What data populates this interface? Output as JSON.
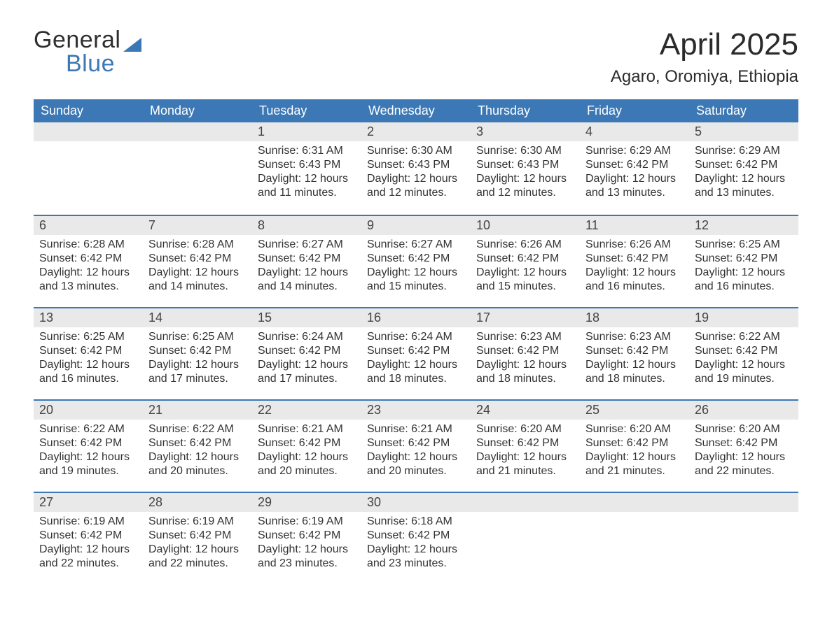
{
  "logo": {
    "word1": "General",
    "word2": "Blue"
  },
  "title": "April 2025",
  "location": "Agaro, Oromiya, Ethiopia",
  "labels": {
    "sunrise": "Sunrise:",
    "sunset": "Sunset:",
    "daylight": "Daylight:"
  },
  "weekdays": [
    "Sunday",
    "Monday",
    "Tuesday",
    "Wednesday",
    "Thursday",
    "Friday",
    "Saturday"
  ],
  "colors": {
    "brand_blue": "#3b78b5",
    "header_bg": "#3b78b5",
    "header_text": "#ffffff",
    "daynum_bg": "#e9e9e9",
    "text": "#333333",
    "rule": "#3b78b5",
    "background": "#ffffff"
  },
  "typography": {
    "title_fontsize_pt": 33,
    "location_fontsize_pt": 18,
    "weekday_fontsize_pt": 14,
    "body_fontsize_pt": 12,
    "font_family": "Segoe UI, Arial, sans-serif"
  },
  "weeks": [
    [
      {
        "n": null
      },
      {
        "n": null
      },
      {
        "n": 1,
        "sunrise": "6:31 AM",
        "sunset": "6:43 PM",
        "dl1": "12 hours",
        "dl2": "and 11 minutes."
      },
      {
        "n": 2,
        "sunrise": "6:30 AM",
        "sunset": "6:43 PM",
        "dl1": "12 hours",
        "dl2": "and 12 minutes."
      },
      {
        "n": 3,
        "sunrise": "6:30 AM",
        "sunset": "6:43 PM",
        "dl1": "12 hours",
        "dl2": "and 12 minutes."
      },
      {
        "n": 4,
        "sunrise": "6:29 AM",
        "sunset": "6:42 PM",
        "dl1": "12 hours",
        "dl2": "and 13 minutes."
      },
      {
        "n": 5,
        "sunrise": "6:29 AM",
        "sunset": "6:42 PM",
        "dl1": "12 hours",
        "dl2": "and 13 minutes."
      }
    ],
    [
      {
        "n": 6,
        "sunrise": "6:28 AM",
        "sunset": "6:42 PM",
        "dl1": "12 hours",
        "dl2": "and 13 minutes."
      },
      {
        "n": 7,
        "sunrise": "6:28 AM",
        "sunset": "6:42 PM",
        "dl1": "12 hours",
        "dl2": "and 14 minutes."
      },
      {
        "n": 8,
        "sunrise": "6:27 AM",
        "sunset": "6:42 PM",
        "dl1": "12 hours",
        "dl2": "and 14 minutes."
      },
      {
        "n": 9,
        "sunrise": "6:27 AM",
        "sunset": "6:42 PM",
        "dl1": "12 hours",
        "dl2": "and 15 minutes."
      },
      {
        "n": 10,
        "sunrise": "6:26 AM",
        "sunset": "6:42 PM",
        "dl1": "12 hours",
        "dl2": "and 15 minutes."
      },
      {
        "n": 11,
        "sunrise": "6:26 AM",
        "sunset": "6:42 PM",
        "dl1": "12 hours",
        "dl2": "and 16 minutes."
      },
      {
        "n": 12,
        "sunrise": "6:25 AM",
        "sunset": "6:42 PM",
        "dl1": "12 hours",
        "dl2": "and 16 minutes."
      }
    ],
    [
      {
        "n": 13,
        "sunrise": "6:25 AM",
        "sunset": "6:42 PM",
        "dl1": "12 hours",
        "dl2": "and 16 minutes."
      },
      {
        "n": 14,
        "sunrise": "6:25 AM",
        "sunset": "6:42 PM",
        "dl1": "12 hours",
        "dl2": "and 17 minutes."
      },
      {
        "n": 15,
        "sunrise": "6:24 AM",
        "sunset": "6:42 PM",
        "dl1": "12 hours",
        "dl2": "and 17 minutes."
      },
      {
        "n": 16,
        "sunrise": "6:24 AM",
        "sunset": "6:42 PM",
        "dl1": "12 hours",
        "dl2": "and 18 minutes."
      },
      {
        "n": 17,
        "sunrise": "6:23 AM",
        "sunset": "6:42 PM",
        "dl1": "12 hours",
        "dl2": "and 18 minutes."
      },
      {
        "n": 18,
        "sunrise": "6:23 AM",
        "sunset": "6:42 PM",
        "dl1": "12 hours",
        "dl2": "and 18 minutes."
      },
      {
        "n": 19,
        "sunrise": "6:22 AM",
        "sunset": "6:42 PM",
        "dl1": "12 hours",
        "dl2": "and 19 minutes."
      }
    ],
    [
      {
        "n": 20,
        "sunrise": "6:22 AM",
        "sunset": "6:42 PM",
        "dl1": "12 hours",
        "dl2": "and 19 minutes."
      },
      {
        "n": 21,
        "sunrise": "6:22 AM",
        "sunset": "6:42 PM",
        "dl1": "12 hours",
        "dl2": "and 20 minutes."
      },
      {
        "n": 22,
        "sunrise": "6:21 AM",
        "sunset": "6:42 PM",
        "dl1": "12 hours",
        "dl2": "and 20 minutes."
      },
      {
        "n": 23,
        "sunrise": "6:21 AM",
        "sunset": "6:42 PM",
        "dl1": "12 hours",
        "dl2": "and 20 minutes."
      },
      {
        "n": 24,
        "sunrise": "6:20 AM",
        "sunset": "6:42 PM",
        "dl1": "12 hours",
        "dl2": "and 21 minutes."
      },
      {
        "n": 25,
        "sunrise": "6:20 AM",
        "sunset": "6:42 PM",
        "dl1": "12 hours",
        "dl2": "and 21 minutes."
      },
      {
        "n": 26,
        "sunrise": "6:20 AM",
        "sunset": "6:42 PM",
        "dl1": "12 hours",
        "dl2": "and 22 minutes."
      }
    ],
    [
      {
        "n": 27,
        "sunrise": "6:19 AM",
        "sunset": "6:42 PM",
        "dl1": "12 hours",
        "dl2": "and 22 minutes."
      },
      {
        "n": 28,
        "sunrise": "6:19 AM",
        "sunset": "6:42 PM",
        "dl1": "12 hours",
        "dl2": "and 22 minutes."
      },
      {
        "n": 29,
        "sunrise": "6:19 AM",
        "sunset": "6:42 PM",
        "dl1": "12 hours",
        "dl2": "and 23 minutes."
      },
      {
        "n": 30,
        "sunrise": "6:18 AM",
        "sunset": "6:42 PM",
        "dl1": "12 hours",
        "dl2": "and 23 minutes."
      },
      {
        "n": null
      },
      {
        "n": null
      },
      {
        "n": null
      }
    ]
  ]
}
